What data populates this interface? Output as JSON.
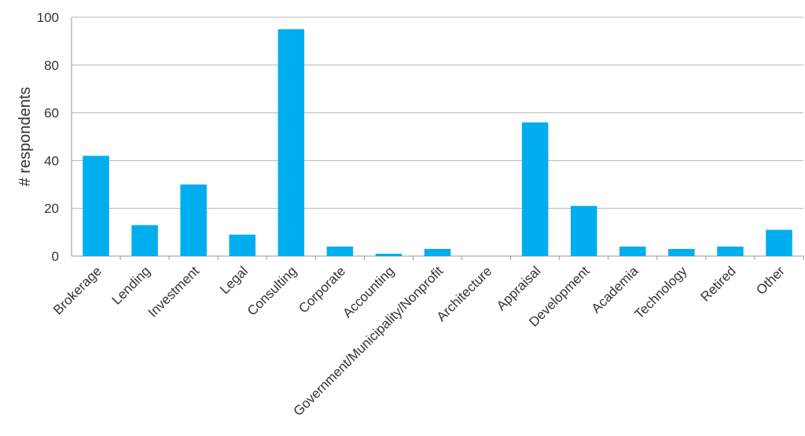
{
  "chart_data": {
    "type": "bar",
    "title": "",
    "xlabel": "",
    "ylabel": "# respondents",
    "ylim": [
      0,
      100
    ],
    "yticks": [
      0,
      20,
      40,
      60,
      80,
      100
    ],
    "grid": true,
    "legend": "none",
    "bar_color": "#00AEEF",
    "categories": [
      "Brokerage",
      "Lending",
      "Investment",
      "Legal",
      "Consulting",
      "Corporate",
      "Accounting",
      "Government/Municipality/Nonprofit",
      "Architecture",
      "Appraisal",
      "Development",
      "Academia",
      "Technology",
      "Retired",
      "Other"
    ],
    "values": [
      42,
      13,
      30,
      9,
      95,
      4,
      1,
      3,
      0,
      56,
      21,
      4,
      3,
      4,
      11
    ]
  }
}
